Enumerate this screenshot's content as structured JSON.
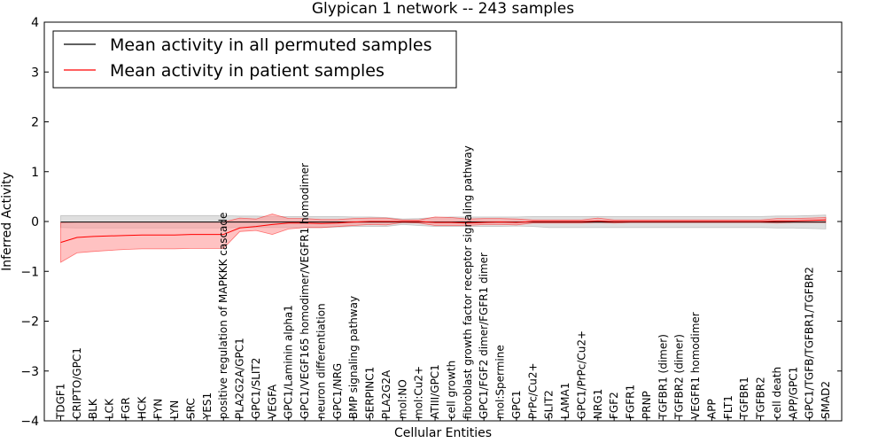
{
  "chart_data": {
    "type": "line",
    "title": "Glypican 1 network -- 243 samples",
    "xlabel": "Cellular Entities",
    "ylabel": "Inferred Activity",
    "ylim": [
      -4,
      4
    ],
    "yticks": [
      "4",
      "3",
      "2",
      "1",
      "0",
      "−1",
      "−2",
      "−3",
      "−4"
    ],
    "grid": false,
    "legend_position": "top-left",
    "colors": {
      "permuted": "#000000",
      "patient": "#ff0000",
      "patient_band": "#ff9999",
      "permuted_band": "#bfbfbf"
    },
    "categories": [
      "TDGF1",
      "CRIPTO/GPC1",
      "BLK",
      "LCK",
      "FGR",
      "HCK",
      "FYN",
      "LYN",
      "SRC",
      "YES1",
      "positive regulation of MAPKKK cascade",
      "PLA2G2A/GPC1",
      "GPC1/SLIT2",
      "VEGFA",
      "GPC1/Laminin alpha1",
      "GPC1/VEGF165 homodimer/VEGFR1 homodimer",
      "neuron differentiation",
      "GPC1/NRG",
      "BMP signaling pathway",
      "SERPINC1",
      "PLA2G2A",
      "mol:NO",
      "mol:Cu2+",
      "ATIII/GPC1",
      "cell growth",
      "fibroblast growth factor receptor signaling pathway",
      "GPC1/FGF2 dimer/FGFR1 dimer",
      "mol:Spermine",
      "GPC1",
      "PrPc/Cu2+",
      "SLIT2",
      "LAMA1",
      "GPC1/PrPc/Cu2+",
      "NRG1",
      "FGF2",
      "FGFR1",
      "PRNP",
      "TGFBR1 (dimer)",
      "TGFBR2 (dimer)",
      "VEGFR1 homodimer",
      "APP",
      "FLT1",
      "TGFBR1",
      "TGFBR2",
      "cell death",
      "APP/GPC1",
      "GPC1/TGFB/TGFBR1/TGFBR2",
      "SMAD2"
    ],
    "series": [
      {
        "name": "Mean activity in all permuted samples",
        "values": [
          -0.01,
          -0.01,
          -0.01,
          -0.01,
          -0.01,
          -0.01,
          -0.01,
          -0.01,
          -0.01,
          -0.01,
          -0.01,
          -0.01,
          -0.01,
          -0.01,
          -0.01,
          -0.01,
          -0.01,
          -0.01,
          -0.01,
          -0.01,
          -0.01,
          -0.01,
          -0.01,
          -0.01,
          -0.01,
          -0.01,
          -0.01,
          -0.01,
          -0.01,
          -0.01,
          -0.01,
          -0.01,
          -0.01,
          -0.01,
          -0.01,
          -0.01,
          -0.01,
          -0.01,
          -0.01,
          -0.01,
          -0.01,
          -0.01,
          -0.01,
          -0.01,
          -0.01,
          -0.01,
          -0.01,
          -0.01
        ],
        "lower": [
          -0.12,
          -0.13,
          -0.13,
          -0.13,
          -0.13,
          -0.13,
          -0.13,
          -0.13,
          -0.13,
          -0.13,
          -0.13,
          -0.12,
          -0.12,
          -0.12,
          -0.12,
          -0.12,
          -0.12,
          -0.11,
          -0.1,
          -0.1,
          -0.1,
          -0.06,
          -0.08,
          -0.1,
          -0.1,
          -0.1,
          -0.1,
          -0.1,
          -0.09,
          -0.1,
          -0.12,
          -0.12,
          -0.12,
          -0.12,
          -0.12,
          -0.12,
          -0.12,
          -0.12,
          -0.12,
          -0.12,
          -0.12,
          -0.12,
          -0.12,
          -0.12,
          -0.13,
          -0.13,
          -0.14,
          -0.15
        ],
        "upper": [
          0.12,
          0.12,
          0.12,
          0.12,
          0.12,
          0.12,
          0.12,
          0.12,
          0.12,
          0.12,
          0.12,
          0.11,
          0.11,
          0.1,
          0.1,
          0.1,
          0.1,
          0.1,
          0.09,
          0.09,
          0.08,
          0.05,
          0.06,
          0.08,
          0.09,
          0.09,
          0.09,
          0.09,
          0.09,
          0.1,
          0.1,
          0.1,
          0.1,
          0.1,
          0.1,
          0.1,
          0.1,
          0.1,
          0.1,
          0.1,
          0.1,
          0.1,
          0.1,
          0.1,
          0.11,
          0.11,
          0.12,
          0.13
        ]
      },
      {
        "name": "Mean activity in patient samples",
        "values": [
          -0.42,
          -0.32,
          -0.3,
          -0.29,
          -0.28,
          -0.27,
          -0.27,
          -0.27,
          -0.26,
          -0.26,
          -0.26,
          -0.13,
          -0.1,
          -0.06,
          -0.03,
          -0.03,
          -0.04,
          -0.03,
          -0.01,
          0.0,
          0.0,
          0.0,
          0.0,
          -0.02,
          -0.02,
          -0.03,
          -0.02,
          -0.01,
          -0.02,
          0.0,
          0.0,
          0.0,
          0.0,
          0.01,
          0.0,
          0.0,
          0.0,
          0.0,
          0.0,
          0.0,
          0.0,
          0.0,
          0.0,
          0.0,
          0.01,
          0.01,
          0.02,
          0.03
        ],
        "lower": [
          -0.82,
          -0.63,
          -0.6,
          -0.58,
          -0.56,
          -0.55,
          -0.55,
          -0.55,
          -0.54,
          -0.54,
          -0.54,
          -0.2,
          -0.18,
          -0.26,
          -0.15,
          -0.12,
          -0.12,
          -0.1,
          -0.08,
          -0.06,
          -0.07,
          -0.02,
          -0.03,
          -0.08,
          -0.08,
          -0.08,
          -0.06,
          -0.06,
          -0.07,
          -0.03,
          -0.03,
          -0.03,
          -0.03,
          -0.02,
          -0.03,
          -0.02,
          -0.02,
          -0.02,
          -0.02,
          -0.02,
          -0.02,
          -0.02,
          -0.02,
          -0.02,
          -0.03,
          -0.02,
          -0.02,
          -0.02
        ],
        "upper": [
          -0.02,
          -0.01,
          -0.01,
          -0.01,
          -0.01,
          -0.01,
          -0.01,
          -0.01,
          -0.01,
          -0.01,
          -0.01,
          0.07,
          0.05,
          0.15,
          0.06,
          0.06,
          0.04,
          0.04,
          0.06,
          0.07,
          0.07,
          0.03,
          0.03,
          0.09,
          0.08,
          0.05,
          0.06,
          0.06,
          0.05,
          0.03,
          0.03,
          0.03,
          0.03,
          0.07,
          0.03,
          0.03,
          0.03,
          0.03,
          0.03,
          0.03,
          0.03,
          0.03,
          0.03,
          0.03,
          0.06,
          0.06,
          0.07,
          0.08
        ]
      }
    ]
  }
}
